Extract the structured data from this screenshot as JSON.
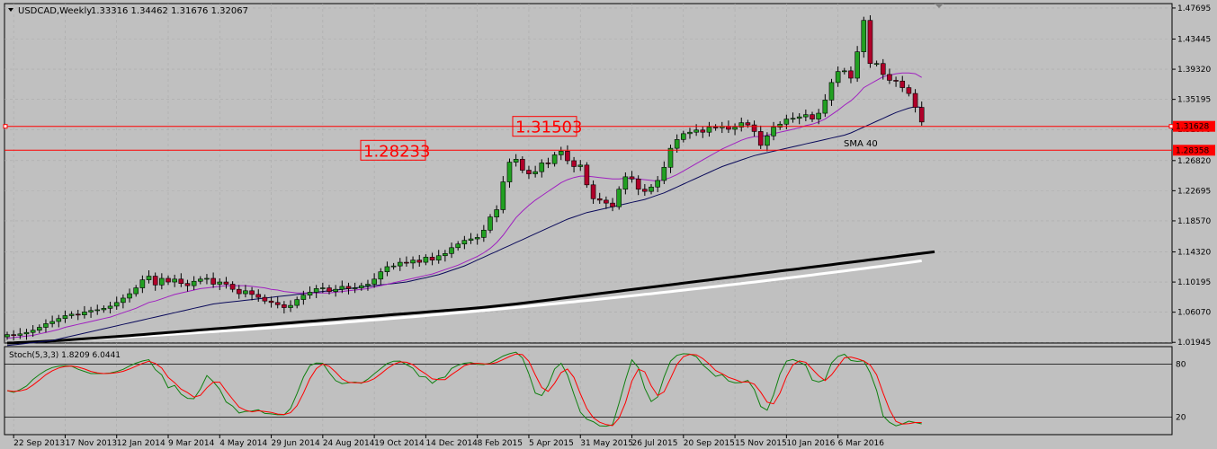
{
  "chart_header": {
    "symbol": "USDCAD,Weekly",
    "ohlc": "1.33316 1.34462 1.31676 1.32067"
  },
  "chart_data": {
    "type": "candlestick",
    "symbol": "USDCAD",
    "timeframe": "Weekly",
    "ylim": [
      1.0185,
      1.483
    ],
    "y_ticks": [
      "1.47695",
      "1.43445",
      "1.39320",
      "1.35195",
      "1.31070",
      "1.26820",
      "1.22695",
      "1.18570",
      "1.14320",
      "1.10195",
      "1.06070",
      "1.01945"
    ],
    "x_ticks": [
      "22 Sep 2013",
      "17 Nov 2013",
      "12 Jan 2014",
      "9 Mar 2014",
      "4 May 2014",
      "29 Jun 2014",
      "24 Aug 2014",
      "19 Oct 2014",
      "14 Dec 2014",
      "8 Feb 2015",
      "5 Apr 2015",
      "31 May 2015",
      "26 Jul 2015",
      "20 Sep 2015",
      "15 Nov 2015",
      "10 Jan 2016",
      "6 Mar 2016"
    ],
    "close": [
      1.03,
      1.029,
      1.031,
      1.033,
      1.036,
      1.04,
      1.045,
      1.048,
      1.052,
      1.056,
      1.058,
      1.057,
      1.061,
      1.063,
      1.064,
      1.066,
      1.069,
      1.074,
      1.08,
      1.086,
      1.094,
      1.105,
      1.11,
      1.098,
      1.107,
      1.102,
      1.106,
      1.1,
      1.097,
      1.103,
      1.106,
      1.107,
      1.099,
      1.102,
      1.099,
      1.092,
      1.086,
      1.09,
      1.085,
      1.081,
      1.076,
      1.074,
      1.071,
      1.067,
      1.07,
      1.078,
      1.084,
      1.088,
      1.093,
      1.094,
      1.089,
      1.092,
      1.096,
      1.093,
      1.094,
      1.097,
      1.099,
      1.106,
      1.116,
      1.123,
      1.124,
      1.129,
      1.128,
      1.132,
      1.129,
      1.136,
      1.132,
      1.138,
      1.141,
      1.149,
      1.154,
      1.159,
      1.161,
      1.163,
      1.173,
      1.191,
      1.201,
      1.239,
      1.266,
      1.27,
      1.255,
      1.25,
      1.253,
      1.265,
      1.264,
      1.276,
      1.281,
      1.268,
      1.26,
      1.262,
      1.235,
      1.216,
      1.214,
      1.21,
      1.205,
      1.229,
      1.246,
      1.243,
      1.229,
      1.226,
      1.232,
      1.241,
      1.259,
      1.285,
      1.297,
      1.305,
      1.307,
      1.31,
      1.307,
      1.314,
      1.313,
      1.315,
      1.311,
      1.314,
      1.32,
      1.317,
      1.308,
      1.289,
      1.302,
      1.314,
      1.318,
      1.325,
      1.326,
      1.328,
      1.331,
      1.325,
      1.333,
      1.351,
      1.375,
      1.39,
      1.391,
      1.381,
      1.417,
      1.46,
      1.401,
      1.401,
      1.386,
      1.378,
      1.377,
      1.368,
      1.36,
      1.341,
      1.321
    ],
    "sma_fast": [
      1.025,
      1.026,
      1.027,
      1.028,
      1.029,
      1.031,
      1.033,
      1.035,
      1.037,
      1.04,
      1.042,
      1.044,
      1.046,
      1.048,
      1.05,
      1.052,
      1.054,
      1.057,
      1.06,
      1.063,
      1.066,
      1.07,
      1.074,
      1.076,
      1.079,
      1.082,
      1.085,
      1.087,
      1.089,
      1.091,
      1.093,
      1.094,
      1.095,
      1.096,
      1.097,
      1.097,
      1.097,
      1.097,
      1.096,
      1.095,
      1.094,
      1.092,
      1.091,
      1.089,
      1.088,
      1.087,
      1.087,
      1.087,
      1.087,
      1.087,
      1.087,
      1.088,
      1.089,
      1.09,
      1.091,
      1.092,
      1.093,
      1.095,
      1.097,
      1.099,
      1.101,
      1.103,
      1.105,
      1.107,
      1.109,
      1.111,
      1.113,
      1.116,
      1.119,
      1.122,
      1.125,
      1.129,
      1.133,
      1.137,
      1.142,
      1.148,
      1.156,
      1.166,
      1.178,
      1.19,
      1.199,
      1.207,
      1.214,
      1.22,
      1.226,
      1.232,
      1.238,
      1.242,
      1.245,
      1.247,
      1.247,
      1.246,
      1.245,
      1.244,
      1.243,
      1.243,
      1.244,
      1.244,
      1.243,
      1.242,
      1.241,
      1.24,
      1.242,
      1.245,
      1.249,
      1.254,
      1.259,
      1.264,
      1.269,
      1.274,
      1.279,
      1.284,
      1.288,
      1.292,
      1.296,
      1.299,
      1.301,
      1.301,
      1.303,
      1.305,
      1.307,
      1.309,
      1.311,
      1.313,
      1.316,
      1.318,
      1.321,
      1.325,
      1.331,
      1.337,
      1.344,
      1.35,
      1.358,
      1.368,
      1.373,
      1.378,
      1.383,
      1.385,
      1.387,
      1.388,
      1.388,
      1.387,
      1.382
    ],
    "sma40": [
      1.015,
      1.016,
      1.017,
      1.018,
      1.019,
      1.02,
      1.021,
      1.022,
      1.024,
      1.026,
      1.028,
      1.03,
      1.032,
      1.034,
      1.036,
      1.038,
      1.04,
      1.042,
      1.044,
      1.046,
      1.048,
      1.05,
      1.052,
      1.054,
      1.056,
      1.058,
      1.06,
      1.062,
      1.064,
      1.066,
      1.068,
      1.07,
      1.072,
      1.073,
      1.074,
      1.075,
      1.076,
      1.077,
      1.078,
      1.079,
      1.08,
      1.081,
      1.082,
      1.083,
      1.084,
      1.085,
      1.086,
      1.087,
      1.088,
      1.089,
      1.09,
      1.091,
      1.092,
      1.093,
      1.094,
      1.095,
      1.096,
      1.097,
      1.098,
      1.099,
      1.1,
      1.101,
      1.102,
      1.104,
      1.106,
      1.108,
      1.11,
      1.112,
      1.115,
      1.118,
      1.121,
      1.124,
      1.128,
      1.132,
      1.136,
      1.14,
      1.144,
      1.148,
      1.152,
      1.156,
      1.16,
      1.164,
      1.168,
      1.172,
      1.176,
      1.18,
      1.184,
      1.188,
      1.191,
      1.194,
      1.197,
      1.199,
      1.201,
      1.203,
      1.205,
      1.207,
      1.209,
      1.211,
      1.213,
      1.215,
      1.218,
      1.221,
      1.224,
      1.228,
      1.232,
      1.236,
      1.24,
      1.244,
      1.248,
      1.252,
      1.256,
      1.26,
      1.263,
      1.266,
      1.269,
      1.272,
      1.275,
      1.277,
      1.279,
      1.281,
      1.283,
      1.285,
      1.287,
      1.289,
      1.291,
      1.293,
      1.295,
      1.297,
      1.299,
      1.301,
      1.303,
      1.306,
      1.31,
      1.314,
      1.318,
      1.322,
      1.326,
      1.33,
      1.334,
      1.337,
      1.34,
      1.342,
      1.341
    ],
    "sma_black": [
      1.0185,
      1.0188,
      1.0192,
      1.0196,
      1.02,
      1.0205,
      1.021,
      1.0215,
      1.022,
      1.0226,
      1.0232,
      1.0238,
      1.0244,
      1.025,
      1.0256,
      1.0262,
      1.0268,
      1.0274,
      1.028,
      1.0287,
      1.0294,
      1.0301,
      1.0308,
      1.0315,
      1.0322,
      1.0329,
      1.0336,
      1.0343,
      1.035,
      1.0357,
      1.0364,
      1.0371,
      1.0378,
      1.0385,
      1.0392,
      1.0399,
      1.0406,
      1.0413,
      1.042,
      1.0427,
      1.0434,
      1.0441,
      1.0448,
      1.0455,
      1.0462,
      1.0469,
      1.0476,
      1.0483,
      1.049,
      1.0497,
      1.0504,
      1.0511,
      1.0518,
      1.0525,
      1.0532,
      1.0539,
      1.0546,
      1.0553,
      1.056,
      1.0567,
      1.0574,
      1.0581,
      1.0588,
      1.0595,
      1.0602,
      1.0609,
      1.0616,
      1.0623,
      1.063,
      1.0637,
      1.0644,
      1.0651,
      1.0658,
      1.0665,
      1.0674,
      1.0683,
      1.0692,
      1.0701,
      1.071,
      1.0719,
      1.073,
      1.0741,
      1.0752,
      1.0763,
      1.0774,
      1.0785,
      1.0796,
      1.0807,
      1.0818,
      1.0829,
      1.084,
      1.0851,
      1.0862,
      1.0873,
      1.0884,
      1.0895,
      1.0906,
      1.0917,
      1.0928,
      1.0939,
      1.095,
      1.0961,
      1.0972,
      1.0983,
      1.0994,
      1.1005,
      1.1016,
      1.1027,
      1.1038,
      1.1049,
      1.106,
      1.1071,
      1.1082,
      1.1093,
      1.1104,
      1.1115,
      1.1126,
      1.1137,
      1.1148,
      1.1159,
      1.117,
      1.1181,
      1.1192,
      1.1203,
      1.1214,
      1.1225,
      1.1236,
      1.1247,
      1.1258,
      1.1269,
      1.128,
      1.1291,
      1.1302,
      1.1313,
      1.1324,
      1.1335,
      1.1346,
      1.1357,
      1.1368,
      1.1379,
      1.139,
      1.1401,
      1.1412,
      1.1423,
      1.1434
    ],
    "sma_white": [],
    "sma40_label": "SMA 40",
    "h_levels": [
      {
        "label": "1.31503",
        "price": 1.31503,
        "axis_tag": "1.31628"
      },
      {
        "label": "1.28233",
        "price": 1.28233,
        "axis_tag": "1.28358"
      }
    ],
    "stochastic": {
      "title": "Stoch(5,3,3) 1.8209 6.0441",
      "levels": [
        "80",
        "20"
      ],
      "ylim": [
        0,
        100
      ]
    }
  },
  "colors": {
    "bg": "#c0c0c0",
    "bull": "#22a022",
    "bear": "#b0002a",
    "level": "#ff0000",
    "sma_fast": "#a020c0",
    "sma40": "#0a0a5a",
    "sma_black": "#000000",
    "sma_white": "#ffffff",
    "stoch_main": "#108010",
    "stoch_signal": "#ff0000"
  }
}
